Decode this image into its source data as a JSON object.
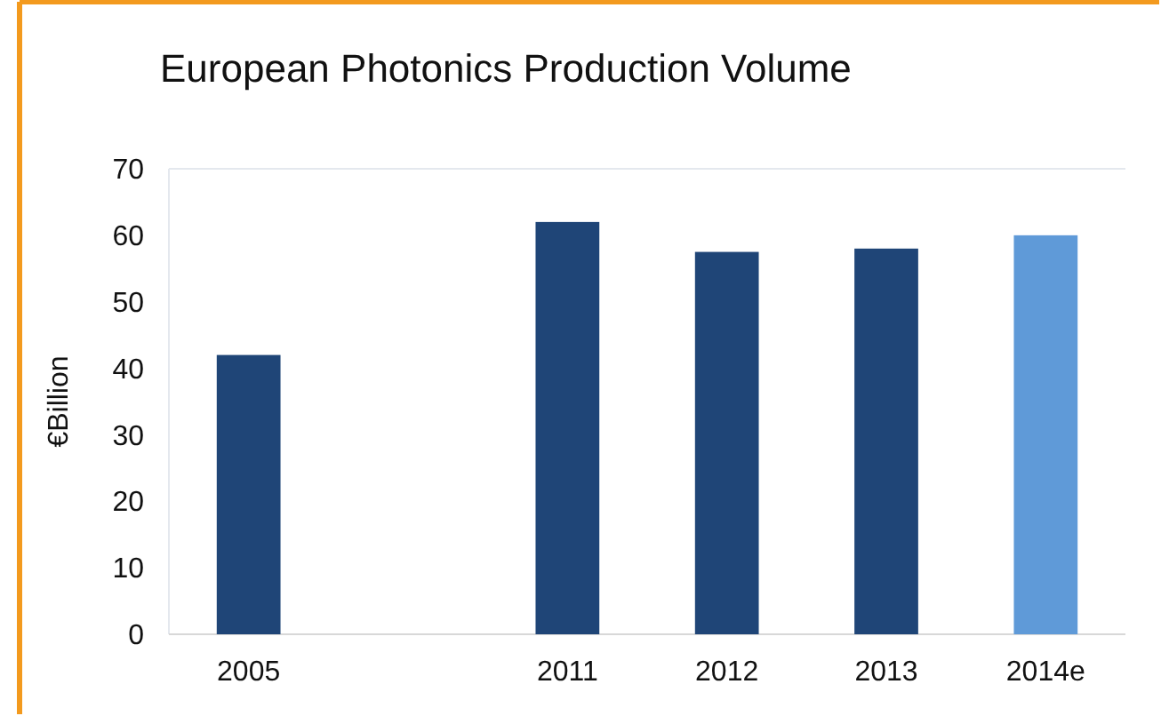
{
  "chart_data": {
    "type": "bar",
    "title": "European Photonics Production Volume",
    "ylabel": "€Billion",
    "categories": [
      "2005",
      null,
      "2011",
      "2012",
      "2013",
      "2014e"
    ],
    "values": [
      42,
      null,
      62,
      57.5,
      58,
      60
    ],
    "colors": [
      "#1f4577",
      null,
      "#1f4577",
      "#1f4577",
      "#1f4577",
      "#5f9ad8"
    ],
    "ylim": [
      0,
      70
    ],
    "yticks": [
      0,
      10,
      20,
      30,
      40,
      50,
      60,
      70
    ]
  }
}
